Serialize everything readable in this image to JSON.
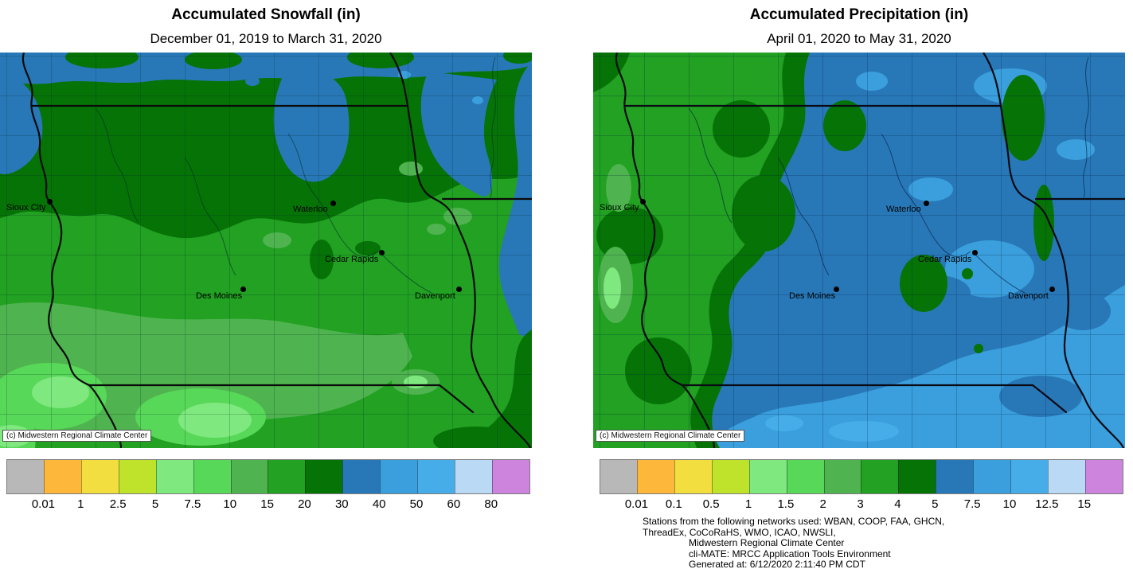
{
  "cities": [
    "Sioux City",
    "Waterloo",
    "Cedar Rapids",
    "Des Moines",
    "Davenport"
  ],
  "palette": {
    "colors": [
      "#b8b8b8",
      "#fdb83c",
      "#f2de3e",
      "#bfe32b",
      "#7fe97f",
      "#58d858",
      "#4fb44f",
      "#22a122",
      "#067306",
      "#2878b8",
      "#3a9fdc",
      "#47ade9",
      "#b9d9f4",
      "#cc84dd"
    ]
  },
  "left_panel": {
    "title": "Accumulated Snowfall (in)",
    "subtitle": "December 01, 2019 to March 31, 2020",
    "copyright": "(c) Midwestern Regional Climate Center",
    "legend": {
      "tick_labels": [
        "0.01",
        "1",
        "2.5",
        "5",
        "7.5",
        "10",
        "15",
        "20",
        "30",
        "40",
        "50",
        "60",
        "80"
      ]
    }
  },
  "right_panel": {
    "title": "Accumulated Precipitation (in)",
    "subtitle": "April 01, 2020 to May 31, 2020",
    "copyright": "(c) Midwestern Regional Climate Center",
    "legend": {
      "tick_labels": [
        "0.01",
        "0.1",
        "0.5",
        "1",
        "1.5",
        "2",
        "3",
        "4",
        "5",
        "7.5",
        "10",
        "12.5",
        "15"
      ]
    },
    "footer_lines": [
      "Stations from the following networks used: WBAN, COOP, FAA, GHCN,",
      "ThreadEx, CoCoRaHS, WMO, ICAO, NWSLI,",
      "Midwestern Regional Climate Center",
      "cli-MATE: MRCC Application Tools Environment",
      "Generated at: 6/12/2020 2:11:40 PM CDT"
    ]
  },
  "chart_data": [
    {
      "type": "heatmap",
      "subtype": "filled-contour-choropleth-map",
      "region": "Iowa and bordering states",
      "title": "Accumulated Snowfall (in)",
      "subtitle": "December 01, 2019 to March 31, 2020",
      "units": "inches",
      "bin_edges": [
        0.01,
        1,
        2.5,
        5,
        7.5,
        10,
        15,
        20,
        30,
        40,
        50,
        60,
        80
      ],
      "bin_colors": [
        "#b8b8b8",
        "#fdb83c",
        "#f2de3e",
        "#bfe32b",
        "#7fe97f",
        "#58d858",
        "#4fb44f",
        "#22a122",
        "#067306",
        "#2878b8",
        "#3a9fdc",
        "#47ade9",
        "#b9d9f4",
        "#cc84dd"
      ],
      "legend_position": "bottom",
      "cities_marked": [
        "Sioux City",
        "Waterloo",
        "Cedar Rapids",
        "Des Moines",
        "Davenport"
      ],
      "reading": "Most of Iowa 15-30 in (greens); far northern strip and northeast 30-40 in (blue); south and southwest bands 5-15 in (lighter greens)"
    },
    {
      "type": "heatmap",
      "subtype": "filled-contour-choropleth-map",
      "region": "Iowa and bordering states",
      "title": "Accumulated Precipitation (in)",
      "subtitle": "April 01, 2020 to May 31, 2020",
      "units": "inches",
      "bin_edges": [
        0.01,
        0.1,
        0.5,
        1,
        1.5,
        2,
        3,
        4,
        5,
        7.5,
        10,
        12.5,
        15
      ],
      "bin_colors": [
        "#b8b8b8",
        "#fdb83c",
        "#f2de3e",
        "#bfe32b",
        "#7fe97f",
        "#58d858",
        "#4fb44f",
        "#22a122",
        "#067306",
        "#2878b8",
        "#3a9fdc",
        "#47ade9",
        "#b9d9f4",
        "#cc84dd"
      ],
      "legend_position": "bottom",
      "cities_marked": [
        "Sioux City",
        "Waterloo",
        "Cedar Rapids",
        "Des Moines",
        "Davenport"
      ],
      "reading": "Western Iowa 2-5 in (greens, 4-5 in dark green band); central and eastern Iowa 5-7.5 in (steel blue) with 7.5-10 in (lighter blue) over the south and east"
    }
  ]
}
